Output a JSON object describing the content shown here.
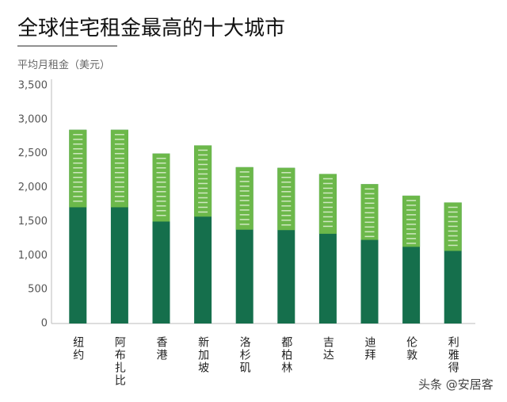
{
  "chart_data": {
    "type": "bar",
    "title": "全球住宅租金最高的十大城市",
    "y_label": "平均月租金（美元）",
    "categories": [
      "纽约",
      "阿布扎比",
      "香港",
      "新加坡",
      "洛杉矶",
      "都柏林",
      "吉达",
      "迪拜",
      "伦敦",
      "利雅得"
    ],
    "values": [
      2850,
      2850,
      2500,
      2620,
      2300,
      2290,
      2200,
      2050,
      1880,
      1780
    ],
    "color": "#156f4c",
    "accent_color": "#6cb84a",
    "ylim": [
      0,
      3500
    ],
    "yticks": [
      0,
      500,
      {
        "value": 1000,
        "label": "1,000"
      },
      {
        "value": 1500,
        "label": "1,500"
      },
      {
        "value": 2000,
        "label": "2,000"
      },
      {
        "value": 2500,
        "label": "2,500"
      },
      {
        "value": 3000,
        "label": "3,000"
      },
      {
        "value": 3500,
        "label": "3,500"
      }
    ],
    "watermark": "头条 @安居客"
  }
}
